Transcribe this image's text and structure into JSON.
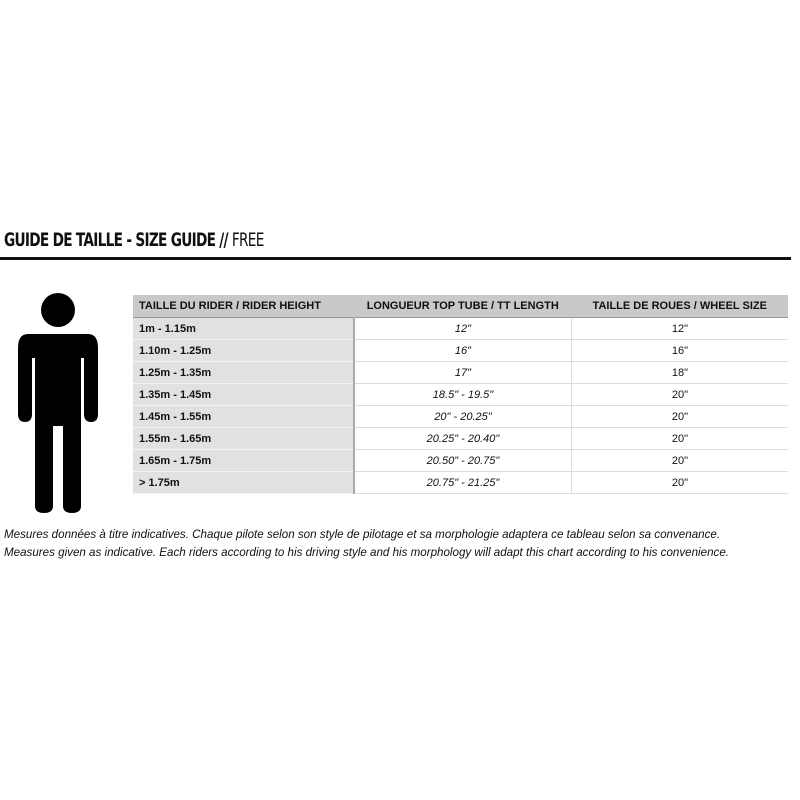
{
  "title": {
    "bold": "GUIDE DE TAILLE - SIZE GUIDE //",
    "light": "FREE"
  },
  "table": {
    "headers": [
      "TAILLE DU RIDER / RIDER HEIGHT",
      "LONGUEUR TOP TUBE / TT LENGTH",
      "TAILLE DE ROUES / WHEEL SIZE"
    ],
    "rows": [
      [
        "1m - 1.15m",
        "12\"",
        "12\""
      ],
      [
        "1.10m - 1.25m",
        "16\"",
        "16\""
      ],
      [
        "1.25m - 1.35m",
        "17\"",
        "18\""
      ],
      [
        "1.35m - 1.45m",
        "18.5\" - 19.5\"",
        "20\""
      ],
      [
        "1.45m - 1.55m",
        "20\" - 20.25\"",
        "20\""
      ],
      [
        "1.55m - 1.65m",
        "20.25\" - 20.40\"",
        "20\""
      ],
      [
        "1.65m - 1.75m",
        "20.50\" - 20.75\"",
        "20\""
      ],
      [
        "> 1.75m",
        "20.75\" - 21.25\"",
        "20\""
      ]
    ]
  },
  "notes": [
    "Mesures données à titre indicatives. Chaque pilote selon son style de pilotage et sa morphologie adaptera ce tableau selon sa convenance.",
    "Measures given as indicative. Each riders according to his driving style and his morphology will adapt this chart according to his convenience."
  ],
  "icons": {
    "figure": "person-icon"
  }
}
